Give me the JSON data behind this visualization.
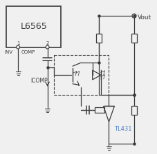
{
  "bg_color": "#f0f0f0",
  "line_color": "#3a3a3a",
  "blue_color": "#4a7cc7",
  "figsize": [
    2.28,
    2.24
  ],
  "dpi": 100,
  "ic_label": "L6565",
  "ic_label_fs": 9,
  "pin1_label": "1",
  "pin2_label": "2",
  "inv_label": "INV",
  "comp_label": "COMP",
  "icomp_label": "ICOMP",
  "tl431_label": "TL431",
  "vout_label": "Vout"
}
